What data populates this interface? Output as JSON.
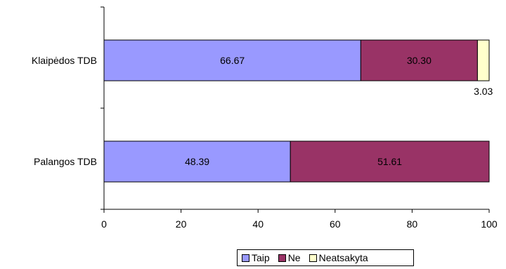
{
  "chart_data": {
    "type": "bar",
    "orientation": "horizontal",
    "stacked": true,
    "categories": [
      "Klaipėdos TDB",
      "Palangos TDB"
    ],
    "series": [
      {
        "name": "Taip",
        "values": [
          66.67,
          48.39
        ],
        "color": "#9999ff"
      },
      {
        "name": "Ne",
        "values": [
          30.3,
          51.61
        ],
        "color": "#993366"
      },
      {
        "name": "Neatsakyta",
        "values": [
          3.03,
          null
        ],
        "color": "#ffffcc"
      }
    ],
    "data_labels": [
      [
        "66.67",
        "48.39"
      ],
      [
        "30.30",
        "51.61"
      ],
      [
        "3.03",
        ""
      ]
    ],
    "xlim": [
      0,
      100
    ],
    "xticks": [
      0,
      20,
      40,
      60,
      80,
      100
    ],
    "grid": false,
    "legend_position": "bottom"
  }
}
